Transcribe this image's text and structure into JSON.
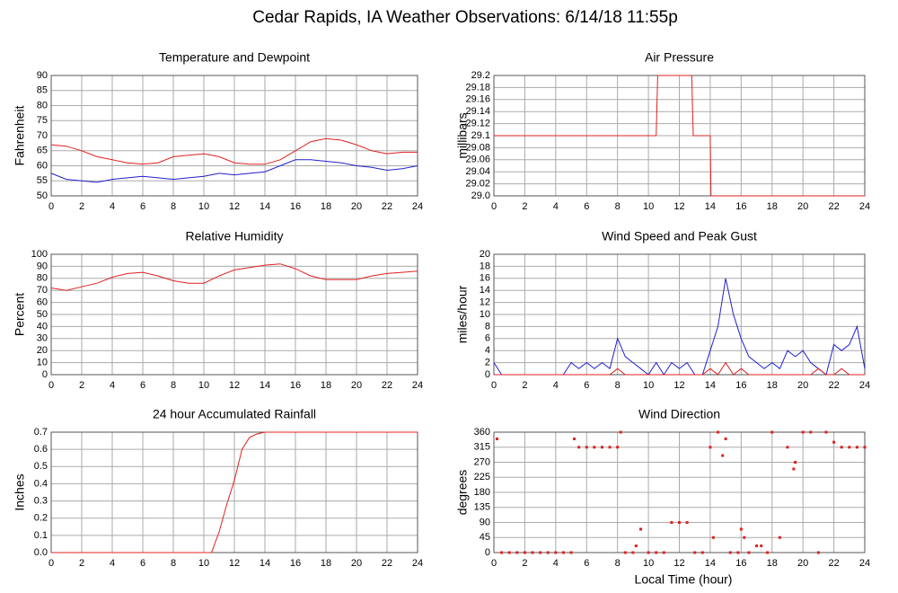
{
  "title": "Cedar Rapids, IA Weather Observations: 6/14/18 11:55p",
  "x_label": "Local Time (hour)",
  "chart_data": [
    {
      "type": "line",
      "title": "Temperature and Dewpoint",
      "y_label": "Fahrenheit",
      "x": [
        0,
        1,
        2,
        3,
        4,
        5,
        6,
        7,
        8,
        9,
        10,
        11,
        12,
        13,
        14,
        15,
        16,
        17,
        18,
        19,
        20,
        21,
        22,
        23,
        24
      ],
      "series": [
        {
          "name": "Temperature",
          "color": "#e02020",
          "values": [
            67,
            66.5,
            65,
            63,
            62,
            61,
            60.5,
            61,
            63,
            63.5,
            64,
            63,
            61,
            60.5,
            60.5,
            62,
            65,
            68,
            69,
            68.5,
            67,
            65,
            64,
            64.5,
            64.5
          ]
        },
        {
          "name": "Dewpoint",
          "color": "#2020d0",
          "values": [
            57.5,
            55.5,
            55,
            54.5,
            55.5,
            56,
            56.5,
            56,
            55.5,
            56,
            56.5,
            57.5,
            57,
            57.5,
            58,
            60,
            62,
            62,
            61.5,
            61,
            60,
            59.5,
            58.5,
            59,
            60
          ]
        }
      ],
      "xlim": [
        0,
        24
      ],
      "xticks": [
        0,
        2,
        4,
        6,
        8,
        10,
        12,
        14,
        16,
        18,
        20,
        22,
        24
      ],
      "ylim": [
        50,
        90
      ],
      "yticks": [
        50,
        55,
        60,
        65,
        70,
        75,
        80,
        85,
        90
      ],
      "grid": true
    },
    {
      "type": "line",
      "title": "Air Pressure",
      "y_label": "millibars",
      "x": [
        0,
        10.5,
        10.6,
        12.8,
        12.9,
        14,
        14.05,
        24
      ],
      "series": [
        {
          "name": "Pressure",
          "color": "#e02020",
          "values": [
            29.1,
            29.1,
            29.2,
            29.2,
            29.1,
            29.1,
            29.0,
            29.0
          ]
        }
      ],
      "xlim": [
        0,
        24
      ],
      "xticks": [
        0,
        2,
        4,
        6,
        8,
        10,
        12,
        14,
        16,
        18,
        20,
        22,
        24
      ],
      "ylim": [
        29.0,
        29.2
      ],
      "yticks": [
        {
          "value": 29.0,
          "label": "29.0"
        },
        29.02,
        29.04,
        29.06,
        29.08,
        29.1,
        29.12,
        29.14,
        29.16,
        29.18,
        29.2
      ],
      "grid": true
    },
    {
      "type": "line",
      "title": "Relative Humidity",
      "y_label": "Percent",
      "x": [
        0,
        1,
        2,
        3,
        4,
        5,
        6,
        7,
        8,
        9,
        10,
        11,
        12,
        13,
        14,
        15,
        16,
        17,
        18,
        19,
        20,
        21,
        22,
        23,
        24
      ],
      "series": [
        {
          "name": "Humidity",
          "color": "#e02020",
          "values": [
            72,
            70,
            73,
            76,
            81,
            84,
            85,
            82,
            78,
            76,
            76,
            82,
            87,
            89,
            91,
            92,
            88,
            82,
            79,
            79,
            79,
            82,
            84,
            85,
            86
          ]
        }
      ],
      "xlim": [
        0,
        24
      ],
      "xticks": [
        0,
        2,
        4,
        6,
        8,
        10,
        12,
        14,
        16,
        18,
        20,
        22,
        24
      ],
      "ylim": [
        0,
        100
      ],
      "yticks": [
        0,
        10,
        20,
        30,
        40,
        50,
        60,
        70,
        80,
        90,
        100
      ],
      "grid": true
    },
    {
      "type": "line",
      "title": "Wind Speed and Peak Gust",
      "y_label": "miles/hour",
      "x": [
        0,
        0.5,
        1,
        1.5,
        2,
        2.5,
        3,
        3.5,
        4,
        4.5,
        5,
        5.5,
        6,
        6.5,
        7,
        7.5,
        8,
        8.5,
        9,
        9.5,
        10,
        10.5,
        11,
        11.5,
        12,
        12.5,
        13,
        13.5,
        14,
        14.5,
        15,
        15.5,
        16,
        16.5,
        17,
        17.5,
        18,
        18.5,
        19,
        19.5,
        20,
        20.5,
        21,
        21.5,
        22,
        22.5,
        23,
        23.5,
        24
      ],
      "series": [
        {
          "name": "Wind Speed",
          "color": "#2020d0",
          "values": [
            2,
            0,
            0,
            0,
            0,
            0,
            0,
            0,
            0,
            0,
            2,
            1,
            2,
            1,
            2,
            1,
            6,
            3,
            2,
            1,
            0,
            2,
            0,
            2,
            1,
            2,
            0,
            0,
            4,
            8,
            16,
            10,
            6,
            3,
            2,
            1,
            2,
            1,
            4,
            3,
            4,
            2,
            1,
            0,
            5,
            4,
            5,
            8,
            1
          ]
        },
        {
          "name": "Peak Gust",
          "color": "#e02020",
          "values": [
            0,
            0,
            0,
            0,
            0,
            0,
            0,
            0,
            0,
            0,
            0,
            0,
            0,
            0,
            0,
            0,
            1,
            0,
            0,
            0,
            0,
            0,
            0,
            0,
            0,
            0,
            0,
            0,
            1,
            0,
            2,
            0,
            1,
            0,
            0,
            0,
            0,
            0,
            0,
            0,
            0,
            0,
            1,
            0,
            0,
            1,
            0,
            0,
            0
          ]
        }
      ],
      "xlim": [
        0,
        24
      ],
      "xticks": [
        0,
        2,
        4,
        6,
        8,
        10,
        12,
        14,
        16,
        18,
        20,
        22,
        24
      ],
      "ylim": [
        0,
        20
      ],
      "yticks": [
        0,
        2,
        4,
        6,
        8,
        10,
        12,
        14,
        16,
        18,
        20
      ],
      "grid": true
    },
    {
      "type": "line",
      "title": "24 hour Accumulated Rainfall",
      "y_label": "Inches",
      "x": [
        0,
        10,
        10.5,
        11,
        11.5,
        12,
        12.5,
        13,
        13.5,
        14,
        14.5,
        24
      ],
      "series": [
        {
          "name": "Rainfall",
          "color": "#e02020",
          "values": [
            0,
            0,
            0,
            0.12,
            0.28,
            0.42,
            0.6,
            0.67,
            0.69,
            0.7,
            0.7,
            0.7
          ]
        }
      ],
      "xlim": [
        0,
        24
      ],
      "xticks": [
        0,
        2,
        4,
        6,
        8,
        10,
        12,
        14,
        16,
        18,
        20,
        22,
        24
      ],
      "ylim": [
        0,
        0.7
      ],
      "yticks": [
        {
          "value": 0,
          "label": "0.0"
        },
        0.1,
        0.2,
        0.3,
        0.4,
        0.5,
        0.6,
        0.7
      ],
      "grid": true
    },
    {
      "type": "scatter",
      "title": "Wind Direction",
      "y_label": "degrees",
      "x": [
        0.2,
        0.5,
        1,
        1.5,
        2,
        2.5,
        3,
        3.5,
        4,
        4.5,
        5,
        5.2,
        5.5,
        6,
        6.5,
        7,
        7.5,
        8,
        8.2,
        8.5,
        9,
        9.2,
        9.5,
        10,
        10.5,
        11,
        11.5,
        12,
        12.5,
        13,
        13.5,
        14,
        14.2,
        14.5,
        14.8,
        15,
        15.3,
        15.8,
        16,
        16.2,
        16.5,
        17,
        17.3,
        17.7,
        18,
        18.5,
        19,
        19.4,
        19.5,
        20,
        20.5,
        21,
        21.5,
        22,
        22.5,
        23,
        23.5,
        24
      ],
      "series": [
        {
          "name": "Direction",
          "color": "#e02020",
          "values": [
            340,
            0,
            0,
            0,
            0,
            0,
            0,
            0,
            0,
            0,
            0,
            340,
            315,
            315,
            315,
            315,
            315,
            315,
            360,
            0,
            0,
            20,
            70,
            0,
            0,
            0,
            90,
            90,
            90,
            0,
            0,
            315,
            45,
            360,
            290,
            340,
            0,
            0,
            70,
            45,
            0,
            20,
            20,
            0,
            360,
            45,
            315,
            250,
            270,
            360,
            360,
            0,
            360,
            330,
            315,
            315,
            315,
            315
          ]
        }
      ],
      "xlim": [
        0,
        24
      ],
      "xticks": [
        0,
        2,
        4,
        6,
        8,
        10,
        12,
        14,
        16,
        18,
        20,
        22,
        24
      ],
      "ylim": [
        0,
        360
      ],
      "yticks": [
        0,
        45,
        90,
        135,
        180,
        225,
        270,
        315,
        360
      ],
      "grid": true
    }
  ]
}
